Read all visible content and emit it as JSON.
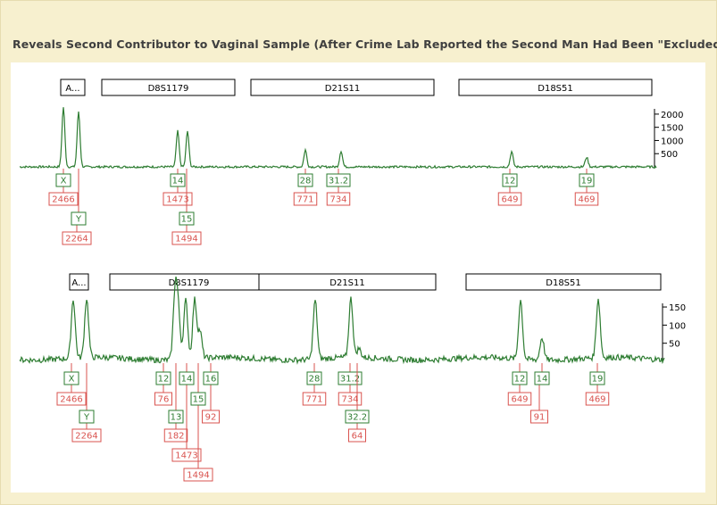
{
  "title": "Reveals Second Contributor to Vaginal Sample (After Crime Lab Reported the Second Man Had Been \"Excluded\")",
  "colors": {
    "trace": "#2e7d32",
    "allele_box": "#2e7d32",
    "height_box": "#d9534f",
    "axis": "#000000",
    "background": "#f7f0cf"
  },
  "chart_data": [
    {
      "type": "line",
      "title": "",
      "panel_label": "A...",
      "loci": [
        "D8S1179",
        "D21S11",
        "D18S51"
      ],
      "yticks": [
        500,
        1000,
        1500,
        2000
      ],
      "ylim": [
        0,
        2200
      ],
      "peaks": [
        {
          "allele": "X",
          "height": 2466
        },
        {
          "allele": "Y",
          "height": 2264
        },
        {
          "allele": "14",
          "height": 1473
        },
        {
          "allele": "15",
          "height": 1494
        },
        {
          "allele": "28",
          "height": 771
        },
        {
          "allele": "31.2",
          "height": 734
        },
        {
          "allele": "12",
          "height": 649
        },
        {
          "allele": "19",
          "height": 469
        }
      ]
    },
    {
      "type": "line",
      "title": "",
      "panel_label": "A...",
      "loci": [
        "D8S1179",
        "D21S11",
        "D18S51"
      ],
      "yticks": [
        50,
        100,
        150
      ],
      "ylim": [
        0,
        160
      ],
      "peaks": [
        {
          "allele": "X",
          "height": 2466
        },
        {
          "allele": "Y",
          "height": 2264
        },
        {
          "allele": "12",
          "height": 76
        },
        {
          "allele": "13",
          "height": 182
        },
        {
          "allele": "14",
          "height": 1473
        },
        {
          "allele": "15",
          "height": 1494
        },
        {
          "allele": "16",
          "height": 92
        },
        {
          "allele": "28",
          "height": 771
        },
        {
          "allele": "31.2",
          "height": 734
        },
        {
          "allele": "32.2",
          "height": 64
        },
        {
          "allele": "12",
          "height": 649
        },
        {
          "allele": "14",
          "height": 91
        },
        {
          "allele": "19",
          "height": 469
        }
      ]
    }
  ]
}
